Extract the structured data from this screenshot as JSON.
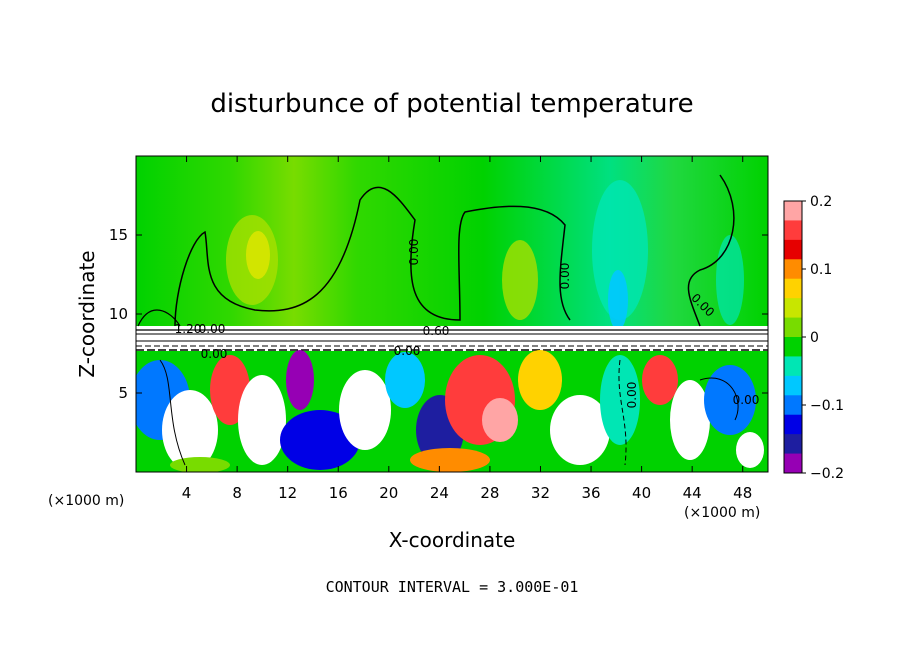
{
  "chart_data": {
    "type": "heatmap",
    "title": "disturbunce of potential temperature",
    "xlabel": "X-coordinate",
    "ylabel": "Z-coordinate",
    "x_unit_label_left": "(×1000 m)",
    "x_unit_label_right": "(×1000 m)",
    "xlim": [
      0,
      50
    ],
    "ylim": [
      0,
      20
    ],
    "x_ticks": [
      4,
      8,
      12,
      16,
      20,
      24,
      28,
      32,
      36,
      40,
      44,
      48
    ],
    "y_ticks": [
      5,
      10,
      15
    ],
    "colorbar": {
      "range": [
        -0.2,
        0.2
      ],
      "ticks": [
        "0.2",
        "0.1",
        "0",
        "−0.1",
        "−0.2"
      ],
      "tick_values": [
        0.2,
        0.1,
        0,
        -0.1,
        -0.2
      ],
      "colors": [
        "#ffa5a5",
        "#ff3c3c",
        "#e60000",
        "#ff8c00",
        "#ffd200",
        "#c8e600",
        "#78dc00",
        "#00d200",
        "#00e6b4",
        "#00c8ff",
        "#0078ff",
        "#0000e6",
        "#1e1ea0",
        "#9600b4"
      ]
    },
    "contour_interval_text": "CONTOUR INTERVAL = 3.000E-01",
    "contour_labels": [
      "0.00",
      "0.00",
      "0.00",
      "0.00",
      "0.60",
      "0.00",
      "0.00",
      "0.00",
      "1.20",
      "0.00"
    ]
  }
}
